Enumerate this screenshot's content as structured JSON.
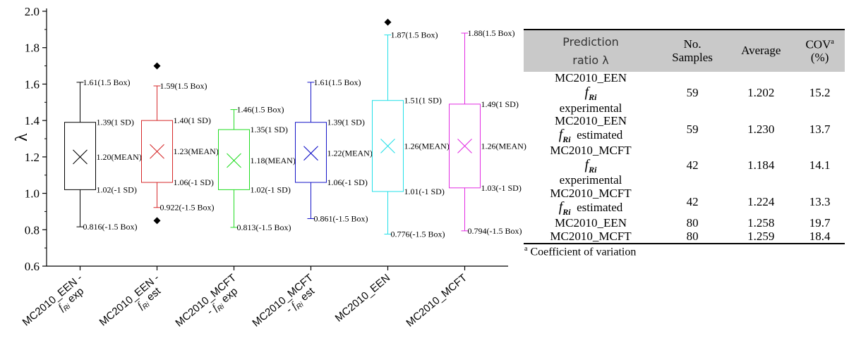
{
  "chart_data": {
    "type": "box",
    "ylabel": "λ",
    "ylim": [
      0.6,
      2.0
    ],
    "yticks": [
      "0.6",
      "0.8",
      "1.0",
      "1.2",
      "1.4",
      "1.6",
      "1.8",
      "2.0"
    ],
    "boxes": [
      {
        "category_main": "MC2010_EEN -",
        "category_sub": "exp",
        "color": "#000000",
        "lower_whisker": 0.816,
        "q1": 1.02,
        "mean": 1.2,
        "q3": 1.39,
        "upper_whisker": 1.61,
        "outliers": [],
        "labels": {
          "upper_whisker": "1.61(1.5 Box)",
          "q3": "1.39(1 SD)",
          "mean": "1.20(MEAN)",
          "q1": "1.02(-1 SD)",
          "lower_whisker": "0.816(-1.5 Box)"
        }
      },
      {
        "category_main": "MC2010_EEN -",
        "category_sub": "est",
        "color": "#d62728",
        "lower_whisker": 0.922,
        "q1": 1.06,
        "mean": 1.23,
        "q3": 1.4,
        "upper_whisker": 1.59,
        "outliers": [
          1.7,
          0.85
        ],
        "labels": {
          "upper_whisker": "1.59(1.5 Box)",
          "q3": "1.40(1 SD)",
          "mean": "1.23(MEAN)",
          "q1": "1.06(-1 SD)",
          "lower_whisker": "0.922(-1.5 Box)"
        }
      },
      {
        "category_main": "MC2010_MCFT",
        "category_sub": "- exp",
        "color": "#22dd22",
        "lower_whisker": 0.813,
        "q1": 1.02,
        "mean": 1.18,
        "q3": 1.35,
        "upper_whisker": 1.46,
        "outliers": [],
        "labels": {
          "upper_whisker": "1.46(1.5 Box)",
          "q3": "1.35(1 SD)",
          "mean": "1.18(MEAN)",
          "q1": "1.02(-1 SD)",
          "lower_whisker": "0.813(-1.5 Box)"
        }
      },
      {
        "category_main": "MC2010_MCFT",
        "category_sub": "- est",
        "color": "#1515c8",
        "lower_whisker": 0.861,
        "q1": 1.06,
        "mean": 1.22,
        "q3": 1.39,
        "upper_whisker": 1.61,
        "outliers": [],
        "labels": {
          "upper_whisker": "1.61(1.5 Box)",
          "q3": "1.39(1 SD)",
          "mean": "1.22(MEAN)",
          "q1": "1.06(-1 SD)",
          "lower_whisker": "0.861(-1.5 Box)"
        }
      },
      {
        "category_main": "MC2010_EEN",
        "category_sub": "",
        "color": "#22e0e8",
        "lower_whisker": 0.776,
        "q1": 1.01,
        "mean": 1.26,
        "q3": 1.51,
        "upper_whisker": 1.87,
        "outliers": [
          1.94
        ],
        "labels": {
          "upper_whisker": "1.87(1.5 Box)",
          "q3": "1.51(1 SD)",
          "mean": "1.26(MEAN)",
          "q1": "1.01(-1 SD)",
          "lower_whisker": "0.776(-1.5 Box)"
        }
      },
      {
        "category_main": "MC2010_MCFT",
        "category_sub": "",
        "color": "#e22ce2",
        "lower_whisker": 0.794,
        "q1": 1.03,
        "mean": 1.26,
        "q3": 1.49,
        "upper_whisker": 1.88,
        "outliers": [],
        "labels": {
          "upper_whisker": "1.88(1.5 Box)",
          "q3": "1.49(1 SD)",
          "mean": "1.26(MEAN)",
          "q1": "1.03(-1 SD)",
          "lower_whisker": "0.794(-1.5 Box)"
        }
      }
    ]
  },
  "table": {
    "headers": {
      "prediction_line1": "Prediction",
      "prediction_line2": "ratio λ",
      "samples_line1": "No.",
      "samples_line2": "Samples",
      "average": "Average",
      "cov_main": "COV",
      "cov_sup": "a",
      "cov_unit": "(%)"
    },
    "rows": [
      {
        "name": "MC2010_EEN",
        "sub": "experimental",
        "samples": "59",
        "average": "1.202",
        "cov": "15.2"
      },
      {
        "name": "MC2010_EEN",
        "sub": "estimated",
        "samples": "59",
        "average": "1.230",
        "cov": "13.7"
      },
      {
        "name": "MC2010_MCFT",
        "sub": "experimental",
        "samples": "42",
        "average": "1.184",
        "cov": "14.1"
      },
      {
        "name": "MC2010_MCFT",
        "sub": "estimated",
        "samples": "42",
        "average": "1.224",
        "cov": "13.3"
      },
      {
        "name": "MC2010_EEN",
        "sub": "",
        "samples": "80",
        "average": "1.258",
        "cov": "19.7"
      },
      {
        "name": "MC2010_MCFT",
        "sub": "",
        "samples": "80",
        "average": "1.259",
        "cov": "18.4"
      }
    ],
    "symbol_main": "f",
    "symbol_sub": "Ri",
    "footnote_sup": "a",
    "footnote_text": "Coefficient of variation"
  }
}
